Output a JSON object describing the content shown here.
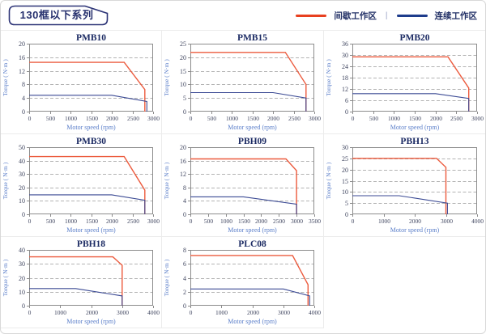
{
  "header": {
    "badge_title": "130框以下系列",
    "legend": {
      "items": [
        {
          "label": "间歇工作区",
          "color": "#e8401f"
        },
        {
          "label": "连续工作区",
          "color": "#1e3c8c"
        }
      ],
      "separator": "|"
    }
  },
  "style": {
    "series_red": "#ec5b3e",
    "series_blue": "#3b4a94",
    "plot_border": "#8c8c8c",
    "grid_line": "#b3b3b3",
    "tick_text": "#3f455f",
    "title_text": "#1b2a63",
    "axis_label_text": "#5a7ec9"
  },
  "chart_data": [
    {
      "type": "line",
      "title": "PMB10",
      "xlabel": "Motor speed (rpm)",
      "ylabel": "Torque ( N·m )",
      "xlim": [
        0,
        3000
      ],
      "xtick_step": 500,
      "ylim": [
        0,
        20
      ],
      "ytick_step": 4,
      "grid": "horizontal-dashed",
      "series": [
        {
          "name": "间歇工作区",
          "color_key": "series_red",
          "points": [
            [
              0,
              14.5
            ],
            [
              2300,
              14.5
            ],
            [
              2800,
              6.5
            ],
            [
              2800,
              0
            ]
          ]
        },
        {
          "name": "连续工作区",
          "color_key": "series_blue",
          "points": [
            [
              0,
              4.8
            ],
            [
              2000,
              4.8
            ],
            [
              2850,
              3
            ],
            [
              2850,
              0
            ]
          ]
        }
      ]
    },
    {
      "type": "line",
      "title": "PMB15",
      "xlabel": "Motor speed (rpm)",
      "ylabel": "Torque ( N·m )",
      "xlim": [
        0,
        3000
      ],
      "xtick_step": 500,
      "ylim": [
        0,
        25
      ],
      "ytick_step": 5,
      "grid": "horizontal-dashed",
      "series": [
        {
          "name": "间歇工作区",
          "color_key": "series_red",
          "points": [
            [
              0,
              21.8
            ],
            [
              2300,
              21.8
            ],
            [
              2800,
              10
            ],
            [
              2800,
              0
            ]
          ]
        },
        {
          "name": "连续工作区",
          "color_key": "series_blue",
          "points": [
            [
              0,
              7
            ],
            [
              2000,
              7
            ],
            [
              2800,
              5
            ],
            [
              2800,
              0
            ]
          ]
        }
      ]
    },
    {
      "type": "line",
      "title": "PMB20",
      "xlabel": "Motor speed (rpm)",
      "ylabel": "Torque ( N·m )",
      "xlim": [
        0,
        3000
      ],
      "xtick_step": 500,
      "ylim": [
        0,
        36
      ],
      "ytick_step": 6,
      "grid": "horizontal-dashed",
      "series": [
        {
          "name": "间歇工作区",
          "color_key": "series_red",
          "points": [
            [
              0,
              29
            ],
            [
              2300,
              29
            ],
            [
              2800,
              12.5
            ],
            [
              2800,
              0
            ]
          ]
        },
        {
          "name": "连续工作区",
          "color_key": "series_blue",
          "points": [
            [
              0,
              9.5
            ],
            [
              2000,
              9.5
            ],
            [
              2800,
              7
            ],
            [
              2800,
              0
            ]
          ]
        }
      ]
    },
    {
      "type": "line",
      "title": "PMB30",
      "xlabel": "Motor speed (rpm)",
      "ylabel": "Torque ( N·m )",
      "xlim": [
        0,
        3000
      ],
      "xtick_step": 500,
      "ylim": [
        0,
        50
      ],
      "ytick_step": 10,
      "grid": "horizontal-dashed",
      "series": [
        {
          "name": "间歇工作区",
          "color_key": "series_red",
          "points": [
            [
              0,
              43
            ],
            [
              2300,
              43
            ],
            [
              2800,
              18
            ],
            [
              2800,
              0
            ]
          ]
        },
        {
          "name": "连续工作区",
          "color_key": "series_blue",
          "points": [
            [
              0,
              14.5
            ],
            [
              2000,
              14.5
            ],
            [
              2800,
              10.5
            ],
            [
              2800,
              0
            ]
          ]
        }
      ]
    },
    {
      "type": "line",
      "title": "PBH09",
      "xlabel": "Motor speed (rpm)",
      "ylabel": "Torque ( N·m )",
      "xlim": [
        0,
        3500
      ],
      "xtick_step": 500,
      "ylim": [
        0,
        20
      ],
      "ytick_step": 4,
      "grid": "horizontal-dashed",
      "series": [
        {
          "name": "间歇工作区",
          "color_key": "series_red",
          "points": [
            [
              0,
              16.5
            ],
            [
              2700,
              16.5
            ],
            [
              3000,
              13
            ],
            [
              3000,
              0
            ]
          ]
        },
        {
          "name": "连续工作区",
          "color_key": "series_blue",
          "points": [
            [
              0,
              5.2
            ],
            [
              1500,
              5.2
            ],
            [
              3000,
              3
            ],
            [
              3000,
              0
            ]
          ]
        }
      ]
    },
    {
      "type": "line",
      "title": "PBH13",
      "xlabel": "Motor speed (rpm)",
      "ylabel": "Torque ( N·m )",
      "xlim": [
        0,
        4000
      ],
      "xtick_step": 1000,
      "ylim": [
        0,
        30
      ],
      "ytick_step": 5,
      "grid": "horizontal-dashed",
      "series": [
        {
          "name": "间歇工作区",
          "color_key": "series_red",
          "points": [
            [
              0,
              25
            ],
            [
              2700,
              25
            ],
            [
              3000,
              21
            ],
            [
              3000,
              0
            ]
          ]
        },
        {
          "name": "连续工作区",
          "color_key": "series_blue",
          "points": [
            [
              0,
              8.3
            ],
            [
              1500,
              8.3
            ],
            [
              3050,
              5
            ],
            [
              3050,
              0
            ]
          ]
        }
      ]
    },
    {
      "type": "line",
      "title": "PBH18",
      "xlabel": "Motor speed (rpm)",
      "ylabel": "Torque ( N·m )",
      "xlim": [
        0,
        4000
      ],
      "xtick_step": 1000,
      "ylim": [
        0,
        40
      ],
      "ytick_step": 10,
      "grid": "horizontal-dashed",
      "series": [
        {
          "name": "间歇工作区",
          "color_key": "series_red",
          "points": [
            [
              0,
              35
            ],
            [
              2700,
              35
            ],
            [
              3000,
              29
            ],
            [
              3000,
              0
            ]
          ]
        },
        {
          "name": "连续工作区",
          "color_key": "series_blue",
          "points": [
            [
              0,
              12.3
            ],
            [
              1500,
              12.3
            ],
            [
              3000,
              7
            ],
            [
              3000,
              0
            ]
          ]
        }
      ]
    },
    {
      "type": "line",
      "title": "PLC08",
      "xlabel": "Motor speed (rpm)",
      "ylabel": "Torque ( N·m )",
      "xlim": [
        0,
        4000
      ],
      "xtick_step": 1000,
      "ylim": [
        0,
        8
      ],
      "ytick_step": 2,
      "grid": "horizontal-dashed",
      "series": [
        {
          "name": "间歇工作区",
          "color_key": "series_red",
          "points": [
            [
              0,
              7.2
            ],
            [
              3300,
              7.2
            ],
            [
              3800,
              3
            ],
            [
              3800,
              0
            ]
          ]
        },
        {
          "name": "连续工作区",
          "color_key": "series_blue",
          "points": [
            [
              0,
              2.4
            ],
            [
              3000,
              2.4
            ],
            [
              3850,
              1.4
            ],
            [
              3850,
              0
            ]
          ]
        }
      ]
    }
  ]
}
